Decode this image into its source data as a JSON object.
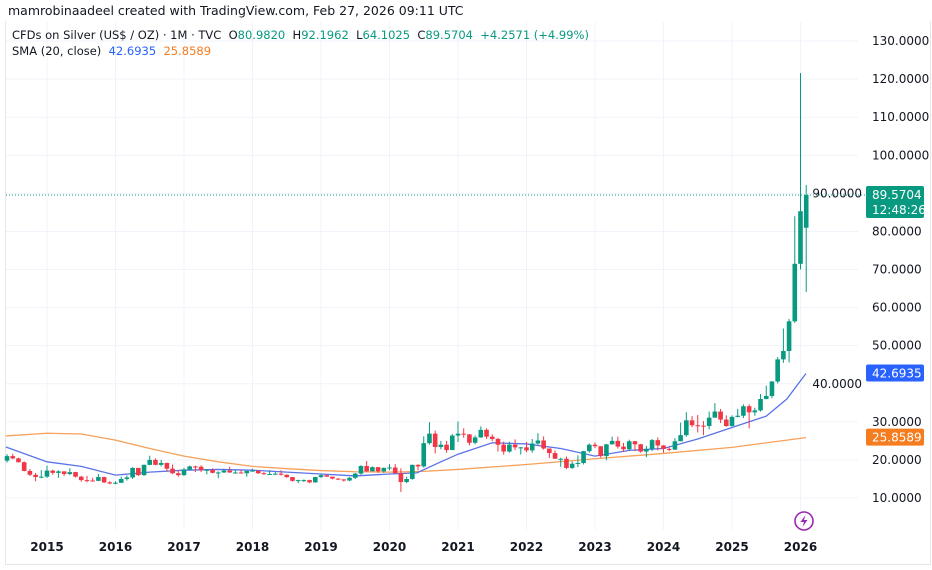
{
  "header": {
    "text": "mamrobinaadeel created with TradingView.com, Feb 27, 2026 09:11 UTC"
  },
  "legend": {
    "symbol": "CFDs on Silver (US$ / OZ) · 1M · TVC",
    "o_label": "O",
    "o": "80.9820",
    "h_label": "H",
    "h": "92.1962",
    "l_label": "L",
    "l": "64.1025",
    "c_label": "C",
    "c": "89.5704",
    "change": "+4.2571 (+4.99%)",
    "sma_label": "SMA (20, close)",
    "sma_value_1": "42.6935",
    "sma_value_2": "25.8589"
  },
  "price_tag": {
    "price": "89.5704",
    "countdown": "12:48:26"
  },
  "colors": {
    "up": "#089981",
    "down": "#f23645",
    "sma_blue": "#5b73e8",
    "sma_blue_tag": "#2962ff",
    "sma_orange": "#f7a15a",
    "sma_orange_tag": "#f57c1f",
    "grid": "#f0f3fa"
  },
  "logo": {
    "icon": "tradingview-lightning-logo-icon"
  },
  "chart_data": {
    "type": "candlestick",
    "timeframe": "1M",
    "first_month": "2014-06",
    "ylim": [
      0,
      135
    ],
    "y_ticks": [
      "10.0000",
      "20.0000",
      "30.0000",
      "40.0000",
      "50.0000",
      "60.0000",
      "70.0000",
      "80.0000",
      "90.0000",
      "100.0000",
      "110.0000",
      "120.0000",
      "130.0000"
    ],
    "y_tick_values": [
      10,
      20,
      30,
      40,
      50,
      60,
      70,
      80,
      90,
      100,
      110,
      120,
      130
    ],
    "x_ticks": [
      "2015",
      "2016",
      "2017",
      "2018",
      "2019",
      "2020",
      "2021",
      "2022",
      "2023",
      "2024",
      "2025",
      "2026"
    ],
    "grid": true,
    "ohlc": [
      [
        19.8,
        21.5,
        19.3,
        21.0
      ],
      [
        21.0,
        21.6,
        20.2,
        20.4
      ],
      [
        20.4,
        20.6,
        19.3,
        19.4
      ],
      [
        19.4,
        19.6,
        17.0,
        17.1
      ],
      [
        17.1,
        17.6,
        15.8,
        16.1
      ],
      [
        16.1,
        16.6,
        14.4,
        15.5
      ],
      [
        15.5,
        17.3,
        15.2,
        15.6
      ],
      [
        15.6,
        18.5,
        15.3,
        17.2
      ],
      [
        17.2,
        17.4,
        16.1,
        16.6
      ],
      [
        16.6,
        17.3,
        15.3,
        17.0
      ],
      [
        17.0,
        17.0,
        15.8,
        16.3
      ],
      [
        16.3,
        17.8,
        16.0,
        16.8
      ],
      [
        16.8,
        16.9,
        15.4,
        15.6
      ],
      [
        15.6,
        15.8,
        14.3,
        14.7
      ],
      [
        14.7,
        15.8,
        14.1,
        14.6
      ],
      [
        14.6,
        15.3,
        14.4,
        14.5
      ],
      [
        14.5,
        16.3,
        14.4,
        15.5
      ],
      [
        15.5,
        15.6,
        13.9,
        14.1
      ],
      [
        14.1,
        14.4,
        13.6,
        13.8
      ],
      [
        13.8,
        14.4,
        13.6,
        14.0
      ],
      [
        14.0,
        15.6,
        13.9,
        15.0
      ],
      [
        15.0,
        15.9,
        14.6,
        15.4
      ],
      [
        15.4,
        18.1,
        15.0,
        17.9
      ],
      [
        17.9,
        17.9,
        15.8,
        16.0
      ],
      [
        16.0,
        18.8,
        15.8,
        18.7
      ],
      [
        18.7,
        21.1,
        18.6,
        20.0
      ],
      [
        20.0,
        20.4,
        18.6,
        18.7
      ],
      [
        18.7,
        20.0,
        18.3,
        19.2
      ],
      [
        19.2,
        19.3,
        16.9,
        17.7
      ],
      [
        17.7,
        18.8,
        16.3,
        16.5
      ],
      [
        16.5,
        17.2,
        15.6,
        16.0
      ],
      [
        16.0,
        17.9,
        15.8,
        17.5
      ],
      [
        17.5,
        18.5,
        17.3,
        18.3
      ],
      [
        18.3,
        18.5,
        16.8,
        18.2
      ],
      [
        18.2,
        18.6,
        16.8,
        17.3
      ],
      [
        17.3,
        17.6,
        16.2,
        17.4
      ],
      [
        17.4,
        17.8,
        16.5,
        16.6
      ],
      [
        16.6,
        17.0,
        15.2,
        16.7
      ],
      [
        16.7,
        17.7,
        16.6,
        17.2
      ],
      [
        17.2,
        18.2,
        16.6,
        16.7
      ],
      [
        16.7,
        17.4,
        16.4,
        16.7
      ],
      [
        16.7,
        17.3,
        16.5,
        16.5
      ],
      [
        16.5,
        17.2,
        15.6,
        17.1
      ],
      [
        17.1,
        17.7,
        16.9,
        17.2
      ],
      [
        17.2,
        17.2,
        16.3,
        16.5
      ],
      [
        16.5,
        16.8,
        16.1,
        16.3
      ],
      [
        16.3,
        17.3,
        16.3,
        16.3
      ],
      [
        16.3,
        16.8,
        16.0,
        16.4
      ],
      [
        16.4,
        17.3,
        15.9,
        16.1
      ],
      [
        16.1,
        16.2,
        15.3,
        15.5
      ],
      [
        15.5,
        15.5,
        14.3,
        14.5
      ],
      [
        14.5,
        14.8,
        13.9,
        14.7
      ],
      [
        14.7,
        14.9,
        14.2,
        14.7
      ],
      [
        14.7,
        14.8,
        13.9,
        14.1
      ],
      [
        14.1,
        15.6,
        14.0,
        15.5
      ],
      [
        15.5,
        16.2,
        15.3,
        16.0
      ],
      [
        16.0,
        16.1,
        15.6,
        15.6
      ],
      [
        15.6,
        15.6,
        14.9,
        15.1
      ],
      [
        15.1,
        15.2,
        14.7,
        14.9
      ],
      [
        14.9,
        14.9,
        14.3,
        14.6
      ],
      [
        14.6,
        15.5,
        14.4,
        15.3
      ],
      [
        15.3,
        16.6,
        15.0,
        16.4
      ],
      [
        16.4,
        18.6,
        16.1,
        18.4
      ],
      [
        18.4,
        19.7,
        16.9,
        17.0
      ],
      [
        17.0,
        18.3,
        17.0,
        18.1
      ],
      [
        18.1,
        18.1,
        16.6,
        17.0
      ],
      [
        17.0,
        18.0,
        16.6,
        17.9
      ],
      [
        17.9,
        18.9,
        17.3,
        18.0
      ],
      [
        18.0,
        18.9,
        16.5,
        16.5
      ],
      [
        16.5,
        17.8,
        11.6,
        14.2
      ],
      [
        14.2,
        15.6,
        13.9,
        15.0
      ],
      [
        15.0,
        18.8,
        14.8,
        18.7
      ],
      [
        18.7,
        18.9,
        17.3,
        18.3
      ],
      [
        18.3,
        26.2,
        18.0,
        24.4
      ],
      [
        24.4,
        29.9,
        24.0,
        26.9
      ],
      [
        26.9,
        27.7,
        21.7,
        23.4
      ],
      [
        23.4,
        25.0,
        22.8,
        24.0
      ],
      [
        24.0,
        25.0,
        21.9,
        22.6
      ],
      [
        22.6,
        26.8,
        22.6,
        26.4
      ],
      [
        26.4,
        30.1,
        24.7,
        26.9
      ],
      [
        26.9,
        28.3,
        25.8,
        26.7
      ],
      [
        26.7,
        26.8,
        23.8,
        24.5
      ],
      [
        24.5,
        26.4,
        24.1,
        25.9
      ],
      [
        25.9,
        28.8,
        25.8,
        27.9
      ],
      [
        27.9,
        28.3,
        25.5,
        26.1
      ],
      [
        26.1,
        26.7,
        24.9,
        25.5
      ],
      [
        25.5,
        25.8,
        22.2,
        24.0
      ],
      [
        24.0,
        24.8,
        21.4,
        22.2
      ],
      [
        22.2,
        24.8,
        21.9,
        24.0
      ],
      [
        24.0,
        25.4,
        22.6,
        23.3
      ],
      [
        23.3,
        23.4,
        21.4,
        23.3
      ],
      [
        23.3,
        24.7,
        22.0,
        22.5
      ],
      [
        22.5,
        25.5,
        21.9,
        24.3
      ],
      [
        24.3,
        27.0,
        24.0,
        25.1
      ],
      [
        25.1,
        26.2,
        22.7,
        23.0
      ],
      [
        23.0,
        23.0,
        20.5,
        21.8
      ],
      [
        21.8,
        22.5,
        20.3,
        20.3
      ],
      [
        20.3,
        20.6,
        18.2,
        20.3
      ],
      [
        20.3,
        20.9,
        17.6,
        17.9
      ],
      [
        17.9,
        19.6,
        17.6,
        19.0
      ],
      [
        19.0,
        21.2,
        18.1,
        19.2
      ],
      [
        19.2,
        22.4,
        18.8,
        22.3
      ],
      [
        22.3,
        24.3,
        21.9,
        24.0
      ],
      [
        24.0,
        24.6,
        23.1,
        23.6
      ],
      [
        23.6,
        23.6,
        20.6,
        21.0
      ],
      [
        21.0,
        24.2,
        19.9,
        24.1
      ],
      [
        24.1,
        26.1,
        24.0,
        25.0
      ],
      [
        25.0,
        26.1,
        23.0,
        23.5
      ],
      [
        23.5,
        24.5,
        22.1,
        22.8
      ],
      [
        22.8,
        25.3,
        22.5,
        24.9
      ],
      [
        24.9,
        25.0,
        22.3,
        24.1
      ],
      [
        24.1,
        24.2,
        21.9,
        22.2
      ],
      [
        22.2,
        23.7,
        20.7,
        22.9
      ],
      [
        22.9,
        25.5,
        22.3,
        25.2
      ],
      [
        25.2,
        25.9,
        22.5,
        23.8
      ],
      [
        23.8,
        23.9,
        21.9,
        22.9
      ],
      [
        22.9,
        23.3,
        22.3,
        22.7
      ],
      [
        22.7,
        25.7,
        22.6,
        24.9
      ],
      [
        24.9,
        29.8,
        24.9,
        26.5
      ],
      [
        26.5,
        32.5,
        26.1,
        30.4
      ],
      [
        30.4,
        31.5,
        28.6,
        29.1
      ],
      [
        29.1,
        31.8,
        27.2,
        29.0
      ],
      [
        29.0,
        30.2,
        26.5,
        28.9
      ],
      [
        28.9,
        32.7,
        28.0,
        31.1
      ],
      [
        31.1,
        34.9,
        31.1,
        32.7
      ],
      [
        32.7,
        33.4,
        29.7,
        30.6
      ],
      [
        30.6,
        31.7,
        28.7,
        28.9
      ],
      [
        28.9,
        31.7,
        28.8,
        31.3
      ],
      [
        31.3,
        33.4,
        31.2,
        31.6
      ],
      [
        31.6,
        34.6,
        31.0,
        34.1
      ],
      [
        34.1,
        34.6,
        28.3,
        32.5
      ],
      [
        32.5,
        33.7,
        31.6,
        33.0
      ],
      [
        33.0,
        37.3,
        32.7,
        36.0
      ],
      [
        36.0,
        39.5,
        35.9,
        36.8
      ],
      [
        36.8,
        40.7,
        36.2,
        40.6
      ],
      [
        40.6,
        47.0,
        40.1,
        46.4
      ],
      [
        46.4,
        54.5,
        45.5,
        48.6
      ],
      [
        48.6,
        57.0,
        45.6,
        56.4
      ],
      [
        56.4,
        84.0,
        56.0,
        71.5
      ],
      [
        71.5,
        121.6,
        70.0,
        85.3
      ],
      [
        80.982,
        92.1962,
        64.1025,
        89.5704
      ]
    ],
    "sma_blue": [
      [
        2014.4,
        23.4
      ],
      [
        2015.0,
        19.5
      ],
      [
        2015.5,
        18.3
      ],
      [
        2016.0,
        16.0
      ],
      [
        2016.5,
        16.8
      ],
      [
        2017.0,
        17.3
      ],
      [
        2017.5,
        17.5
      ],
      [
        2018.0,
        17.3
      ],
      [
        2018.5,
        16.8
      ],
      [
        2019.0,
        16.3
      ],
      [
        2019.5,
        15.8
      ],
      [
        2020.0,
        16.3
      ],
      [
        2020.4,
        16.6
      ],
      [
        2020.75,
        19.5
      ],
      [
        2021.0,
        21.5
      ],
      [
        2021.5,
        24.5
      ],
      [
        2022.0,
        24.2
      ],
      [
        2022.5,
        23.0
      ],
      [
        2023.0,
        21.0
      ],
      [
        2023.5,
        22.5
      ],
      [
        2024.0,
        23.0
      ],
      [
        2024.5,
        25.5
      ],
      [
        2025.0,
        28.5
      ],
      [
        2025.5,
        31.5
      ],
      [
        2025.8,
        36.0
      ],
      [
        2026.08,
        42.6935
      ]
    ],
    "sma_orange": [
      [
        2014.4,
        26.3
      ],
      [
        2015.0,
        27.0
      ],
      [
        2015.5,
        26.8
      ],
      [
        2016.0,
        25.2
      ],
      [
        2016.5,
        23.0
      ],
      [
        2017.0,
        21.0
      ],
      [
        2017.5,
        19.5
      ],
      [
        2018.0,
        18.3
      ],
      [
        2018.5,
        17.7
      ],
      [
        2019.0,
        17.2
      ],
      [
        2019.5,
        16.9
      ],
      [
        2020.0,
        16.8
      ],
      [
        2020.5,
        17.0
      ],
      [
        2021.0,
        17.5
      ],
      [
        2022.0,
        18.8
      ],
      [
        2023.0,
        20.3
      ],
      [
        2024.0,
        21.7
      ],
      [
        2025.0,
        23.3
      ],
      [
        2026.08,
        25.8589
      ]
    ]
  }
}
